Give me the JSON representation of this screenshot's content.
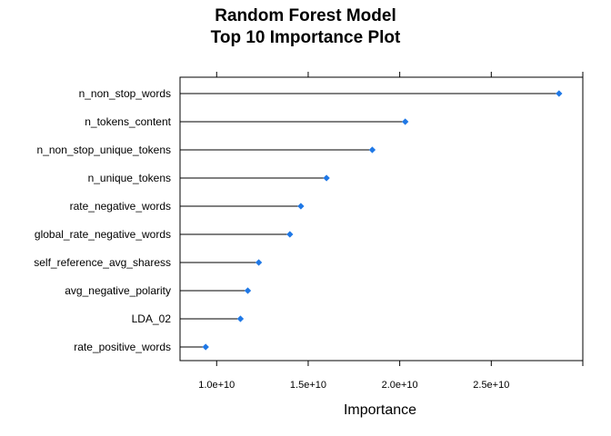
{
  "chart_data": {
    "type": "dotplot",
    "title_lines": [
      "Random Forest Model",
      "Top 10 Importance Plot"
    ],
    "xlabel": "Importance",
    "xlim": [
      8000000000.0,
      30000000000.0
    ],
    "xticks": [
      10000000000.0,
      15000000000.0,
      20000000000.0,
      25000000000.0,
      30000000000.0
    ],
    "xtick_labels": [
      "1.0e+10",
      "1.5e+10",
      "2.0e+10",
      "2.5e+10",
      ""
    ],
    "categories": [
      "n_non_stop_words",
      "n_tokens_content",
      "n_non_stop_unique_tokens",
      "n_unique_tokens",
      "rate_negative_words",
      "global_rate_negative_words",
      "self_reference_avg_sharess",
      "avg_negative_polarity",
      "LDA_02",
      "rate_positive_words"
    ],
    "values": [
      28700000000.0,
      20300000000.0,
      18500000000.0,
      16000000000.0,
      14600000000.0,
      14000000000.0,
      12300000000.0,
      11700000000.0,
      11300000000.0,
      9400000000.0
    ],
    "point_color": "#1f78e6",
    "line_color": "#000000",
    "grid": false
  }
}
